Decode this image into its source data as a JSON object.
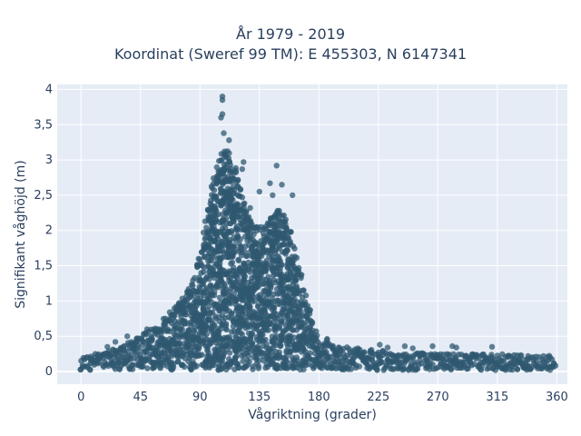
{
  "chart_data": {
    "type": "scatter",
    "title_line1": "År 1979 - 2019",
    "title_line2": "Koordinat (Sweref 99 TM): E 455303, N 6147341",
    "xlabel": "Vågriktning (grader)",
    "ylabel": "Signifikant våghöjd (m)",
    "xlim": [
      -18,
      368
    ],
    "ylim": [
      -0.18,
      4.07
    ],
    "x_ticks": [
      0,
      45,
      90,
      135,
      180,
      225,
      270,
      315,
      360
    ],
    "x_tick_labels": [
      "0",
      "45",
      "90",
      "135",
      "180",
      "225",
      "270",
      "315",
      "360"
    ],
    "y_ticks": [
      0,
      0.5,
      1,
      1.5,
      2,
      2.5,
      3,
      3.5,
      4
    ],
    "y_tick_labels": [
      "0",
      "0,5",
      "1",
      "1,5",
      "2",
      "2,5",
      "3",
      "3,5",
      "4"
    ],
    "grid": true,
    "colors": {
      "marker": "#2f5870",
      "plot_background": "#e5ecf6",
      "grid": "#ffffff",
      "text": "#2a3f5f"
    },
    "envelope": {
      "x": [
        0,
        20,
        45,
        60,
        75,
        85,
        90,
        95,
        100,
        105,
        110,
        115,
        120,
        125,
        130,
        135,
        140,
        145,
        150,
        155,
        160,
        165,
        170,
        175,
        180,
        190,
        200,
        225,
        270,
        315,
        360
      ],
      "y_max": [
        0.2,
        0.3,
        0.5,
        0.7,
        1.0,
        1.35,
        1.7,
        2.2,
        2.8,
        3.1,
        3.15,
        3.05,
        2.6,
        2.3,
        2.15,
        2.05,
        2.1,
        2.25,
        2.3,
        2.2,
        1.9,
        1.5,
        1.05,
        0.75,
        0.55,
        0.4,
        0.35,
        0.3,
        0.25,
        0.25,
        0.22
      ]
    },
    "outliers": [
      {
        "x": 107,
        "y": 3.9
      },
      {
        "x": 107,
        "y": 3.85
      },
      {
        "x": 107,
        "y": 3.65
      },
      {
        "x": 106,
        "y": 3.6
      },
      {
        "x": 108,
        "y": 3.38
      },
      {
        "x": 112,
        "y": 3.28
      },
      {
        "x": 123,
        "y": 2.97
      },
      {
        "x": 122,
        "y": 2.87
      },
      {
        "x": 148,
        "y": 2.92
      },
      {
        "x": 143,
        "y": 2.67
      },
      {
        "x": 152,
        "y": 2.65
      },
      {
        "x": 135,
        "y": 2.55
      },
      {
        "x": 145,
        "y": 2.5
      },
      {
        "x": 160,
        "y": 2.5
      },
      {
        "x": 128,
        "y": 2.32
      },
      {
        "x": 136,
        "y": 2.05
      },
      {
        "x": 121,
        "y": 2.1
      },
      {
        "x": 168,
        "y": 1.15
      },
      {
        "x": 66,
        "y": 0.72
      },
      {
        "x": 72,
        "y": 0.92
      },
      {
        "x": 20,
        "y": 0.35
      },
      {
        "x": 26,
        "y": 0.42
      },
      {
        "x": 35,
        "y": 0.5
      },
      {
        "x": 50,
        "y": 0.6
      },
      {
        "x": 226,
        "y": 0.38
      },
      {
        "x": 232,
        "y": 0.34
      },
      {
        "x": 245,
        "y": 0.36
      },
      {
        "x": 251,
        "y": 0.33
      },
      {
        "x": 266,
        "y": 0.36
      },
      {
        "x": 281,
        "y": 0.36
      },
      {
        "x": 284,
        "y": 0.34
      },
      {
        "x": 311,
        "y": 0.35
      },
      {
        "x": 355,
        "y": 0.2
      }
    ]
  }
}
